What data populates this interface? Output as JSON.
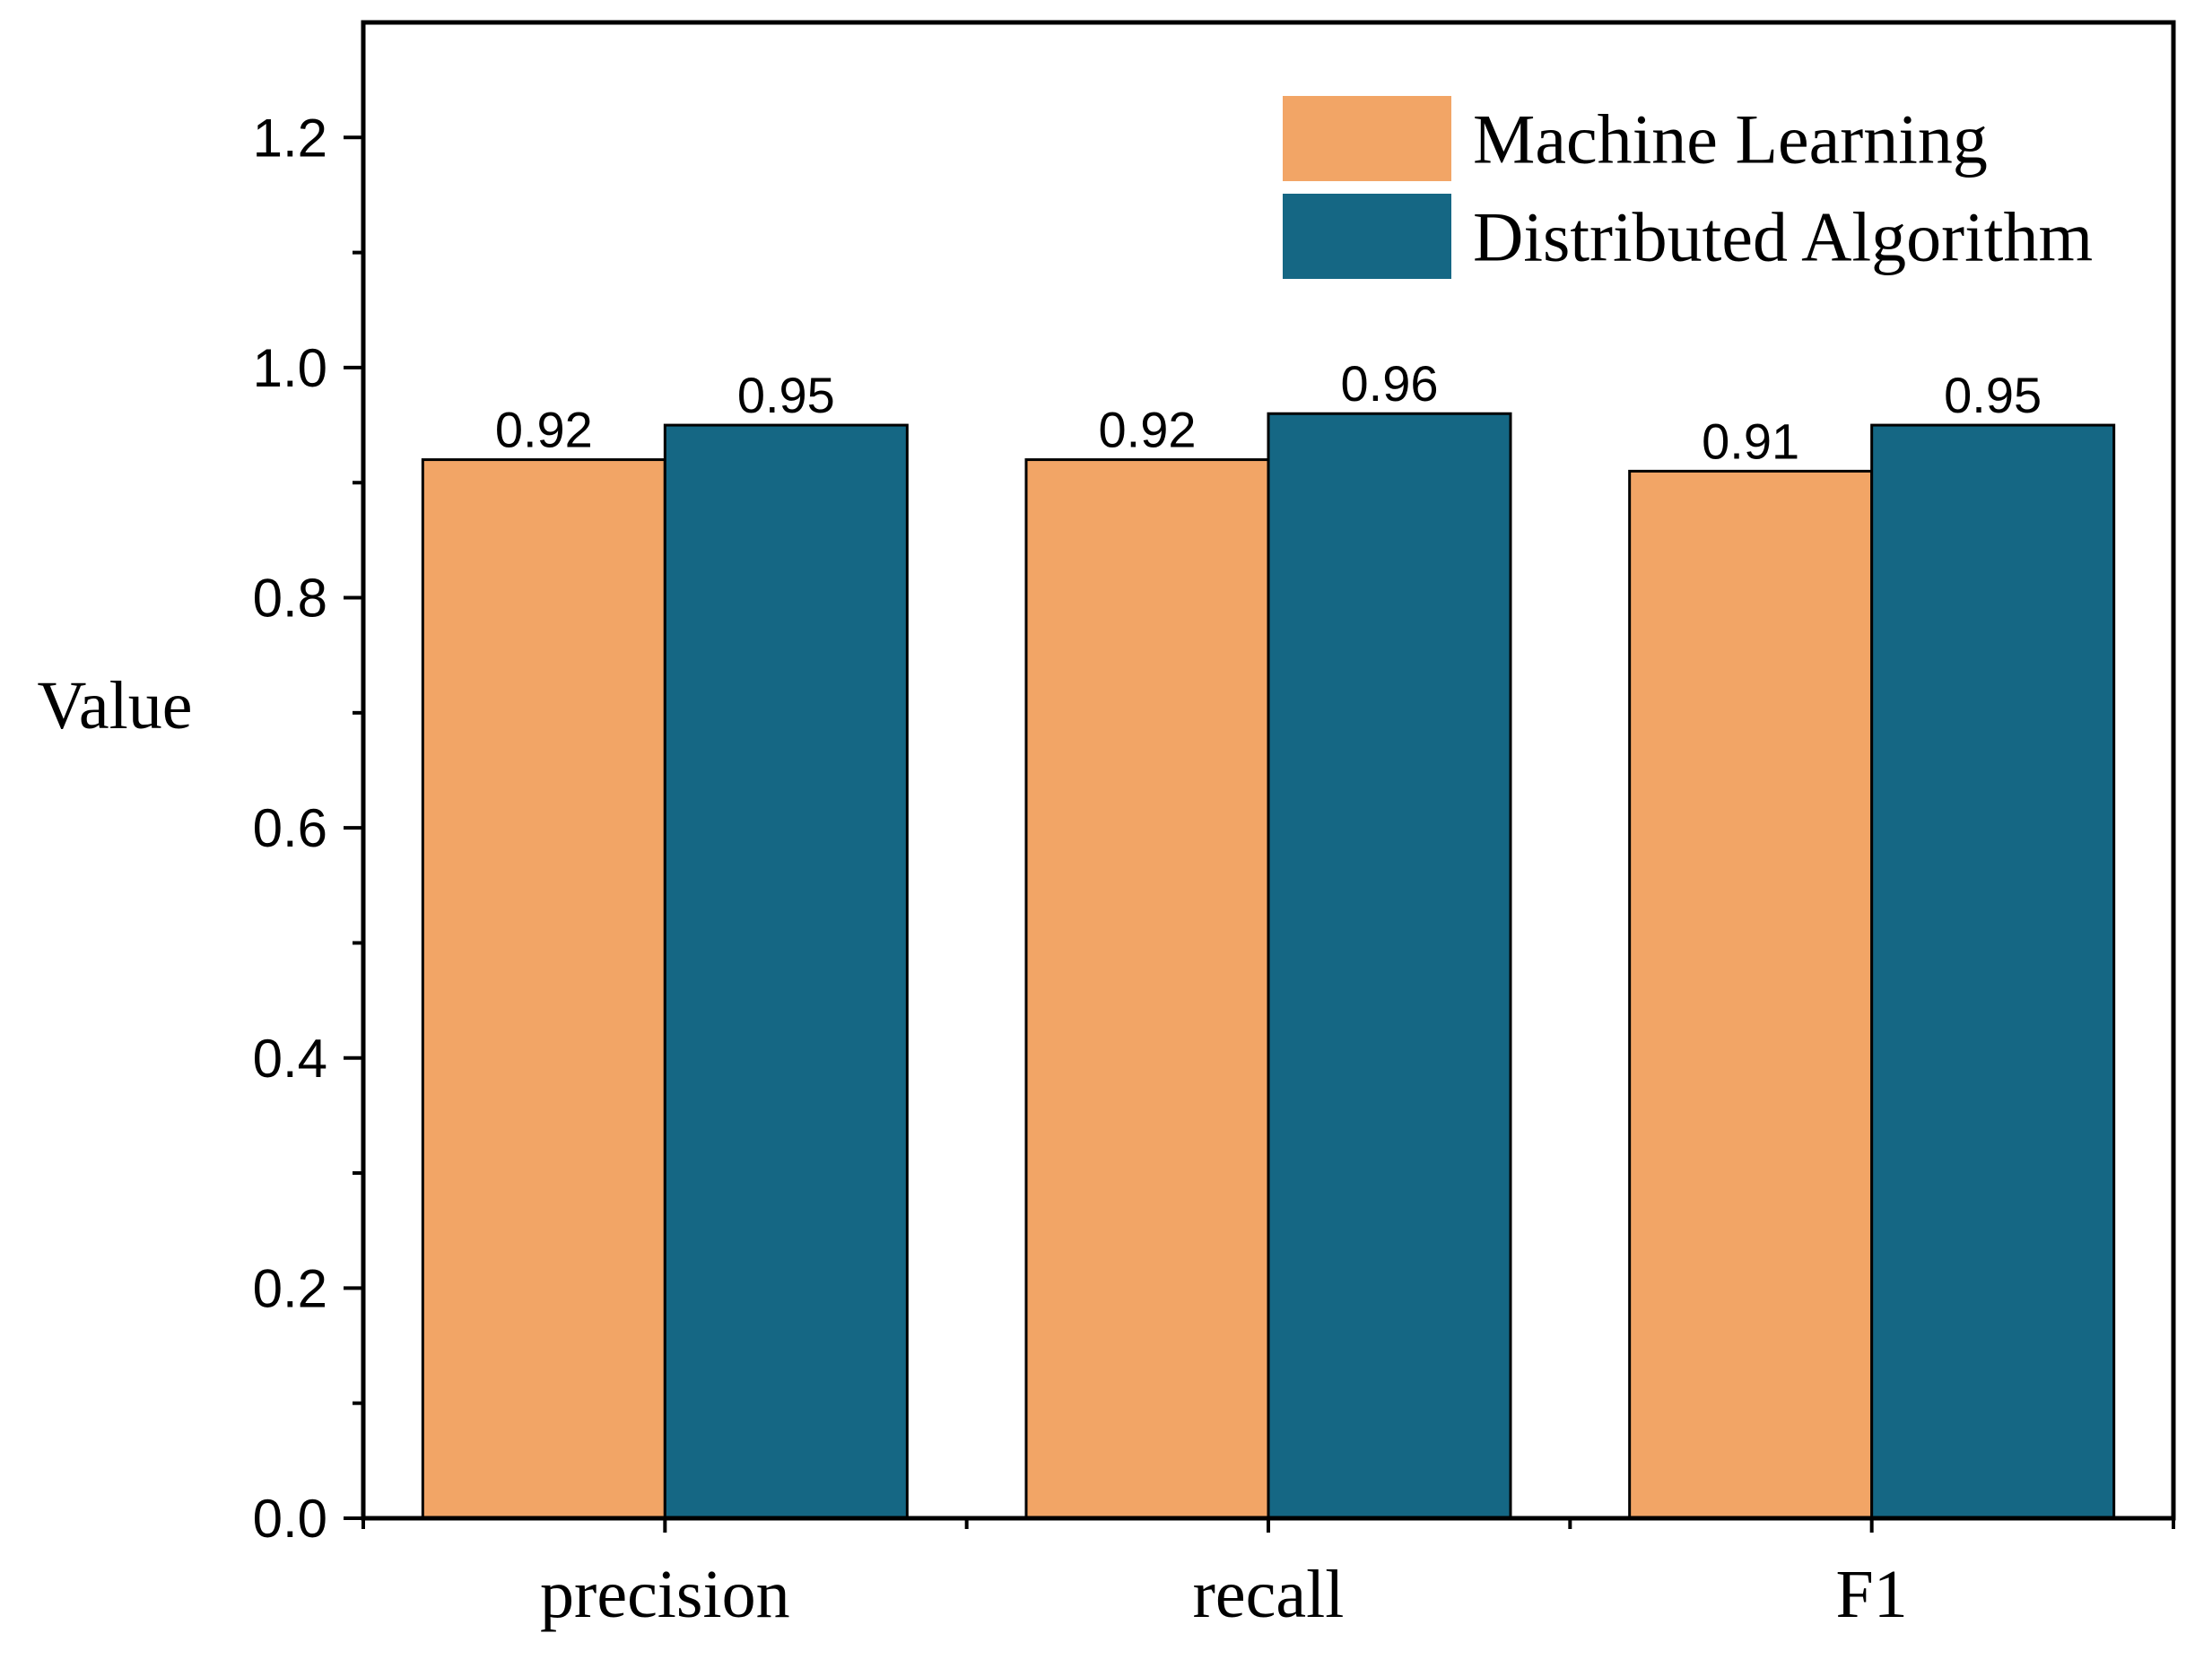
{
  "chart_data": {
    "type": "bar",
    "title": "",
    "xlabel": "",
    "ylabel": "Value",
    "ylim": [
      0,
      1.3
    ],
    "yticks": [
      0.0,
      0.2,
      0.4,
      0.6,
      0.8,
      1.0,
      1.2
    ],
    "ytick_labels": [
      "0.0",
      "0.2",
      "0.4",
      "0.6",
      "0.8",
      "1.0",
      "1.2"
    ],
    "categories": [
      "precision",
      "recall",
      "F1"
    ],
    "series": [
      {
        "name": "Machine Learning",
        "values": [
          0.92,
          0.92,
          0.91
        ],
        "labels": [
          "0.92",
          "0.92",
          "0.91"
        ],
        "color": "#F2A566"
      },
      {
        "name": "Distributed Algorithm",
        "values": [
          0.95,
          0.96,
          0.95
        ],
        "labels": [
          "0.95",
          "0.96",
          "0.95"
        ],
        "color": "#156784"
      }
    ],
    "legend_position": "top-right",
    "grid": false
  }
}
